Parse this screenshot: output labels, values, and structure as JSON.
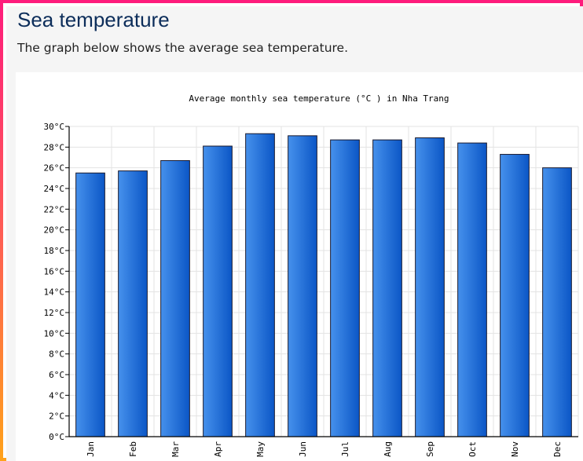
{
  "header": {
    "title": "Sea temperature",
    "description": "The graph below shows the average sea temperature."
  },
  "colors": {
    "bar_light": "#4691ec",
    "bar_dark": "#0b56c6",
    "bar_stroke": "#1a1a2e",
    "grid": "#e3e3e3",
    "border_top": "#fe1b7c",
    "border_bottom": "#ffa21a"
  },
  "chart_data": {
    "type": "bar",
    "title": "Average monthly sea temperature (°C ) in Nha Trang",
    "xlabel": "",
    "ylabel": "",
    "categories": [
      "Jan",
      "Feb",
      "Mar",
      "Apr",
      "May",
      "Jun",
      "Jul",
      "Aug",
      "Sep",
      "Oct",
      "Nov",
      "Dec"
    ],
    "values": [
      25.5,
      25.7,
      26.7,
      28.1,
      29.3,
      29.1,
      28.7,
      28.7,
      28.9,
      28.4,
      27.3,
      26.0
    ],
    "ylim": [
      0,
      30
    ],
    "y_ticks": [
      "0°C",
      "2°C",
      "4°C",
      "6°C",
      "8°C",
      "10°C",
      "12°C",
      "14°C",
      "16°C",
      "18°C",
      "20°C",
      "22°C",
      "24°C",
      "26°C",
      "28°C",
      "30°C"
    ],
    "grid": true,
    "legend": "none"
  }
}
